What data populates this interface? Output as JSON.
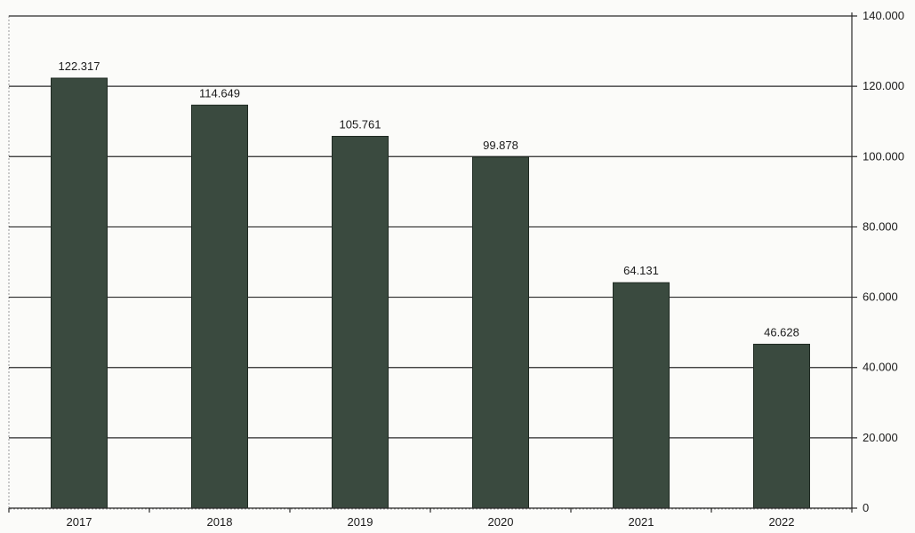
{
  "chart_data": {
    "type": "bar",
    "title": "",
    "xlabel": "",
    "ylabel": "",
    "categories": [
      "2017",
      "2018",
      "2019",
      "2020",
      "2021",
      "2022"
    ],
    "values": [
      122317,
      114649,
      105761,
      99878,
      64131,
      46628
    ],
    "data_labels": [
      "122.317",
      "114.649",
      "105.761",
      "99.878",
      "64.131",
      "46.628"
    ],
    "ylim": [
      0,
      140000
    ],
    "y_ticks": [
      0,
      20000,
      40000,
      60000,
      80000,
      100000,
      120000,
      140000
    ],
    "y_tick_labels": [
      "0",
      "20.000",
      "40.000",
      "60.000",
      "80.000",
      "100.000",
      "120.000",
      "140.000"
    ],
    "y_axis_side": "right",
    "grid": true,
    "legend": "none",
    "colors": {
      "bar": "#3a4a3f",
      "bar_edge": "#1f2a22",
      "grid": "#2a2a2a",
      "background": "#fbfbf9"
    }
  }
}
